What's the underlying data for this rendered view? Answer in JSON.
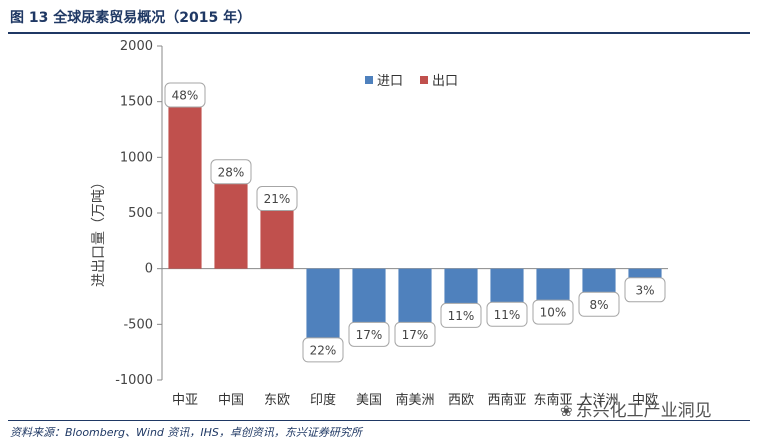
{
  "header": {
    "title": "图 13 全球尿素贸易概况（2015 年）"
  },
  "footer": {
    "source": "资料来源：Bloomberg、Wind 资讯，IHS，卓创资讯，东兴证券研究所"
  },
  "watermark": {
    "text": "东兴化工产业洞见",
    "icon": "wechat-icon"
  },
  "colors": {
    "import": "#4f81bd",
    "export": "#c0504d"
  },
  "chart_data": {
    "type": "bar",
    "title": "全球尿素贸易概况（2015 年）",
    "xlabel": "",
    "ylabel": "进出口量（万吨）",
    "ylim": [
      -1000,
      2000
    ],
    "yticks": [
      -1000,
      -500,
      0,
      500,
      1000,
      1500,
      2000
    ],
    "grid": false,
    "legend_position": "top-center",
    "categories": [
      "中亚",
      "中国",
      "东欧",
      "印度",
      "美国",
      "南美洲",
      "西欧",
      "西南亚",
      "东南亚",
      "大洋洲",
      "中欧"
    ],
    "series": [
      {
        "name": "进口",
        "color": "#4f81bd",
        "values": [
          null,
          null,
          null,
          -640,
          -500,
          -500,
          -330,
          -320,
          -300,
          -230,
          -100
        ]
      },
      {
        "name": "出口",
        "color": "#c0504d",
        "values": [
          1560,
          870,
          630,
          null,
          null,
          null,
          null,
          null,
          null,
          null,
          null
        ]
      }
    ],
    "data_labels": [
      "48%",
      "28%",
      "21%",
      "22%",
      "17%",
      "17%",
      "11%",
      "11%",
      "10%",
      "8%",
      "3%"
    ]
  }
}
